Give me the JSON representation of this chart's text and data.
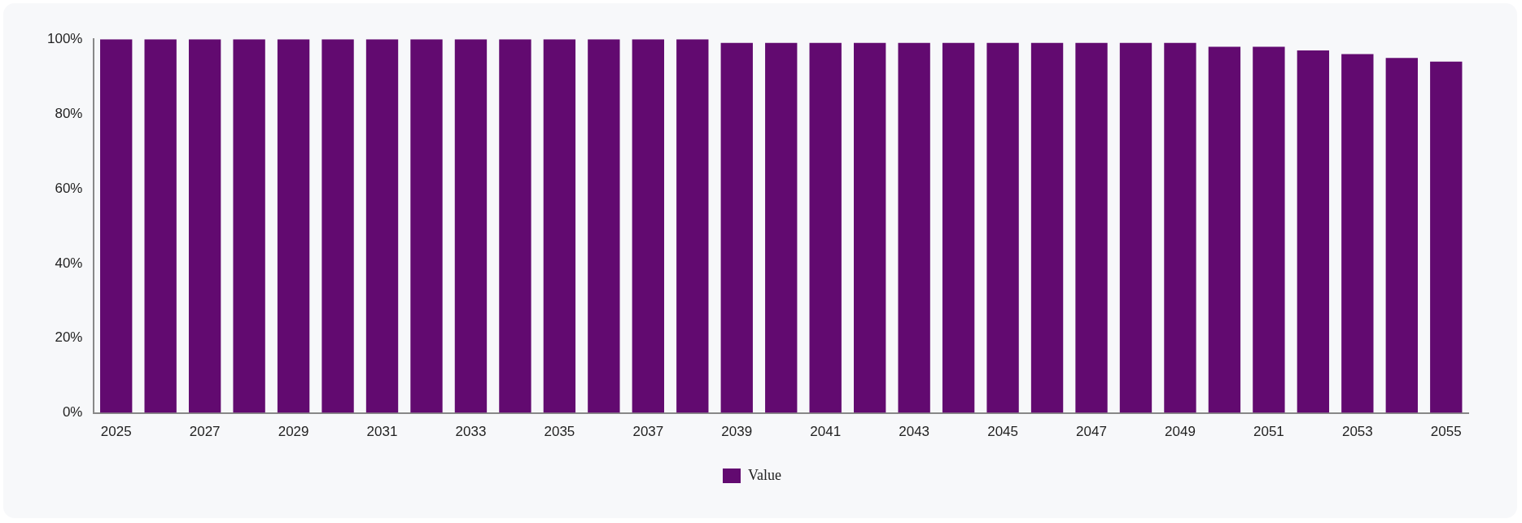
{
  "chart_data": {
    "type": "bar",
    "categories": [
      "2025",
      null,
      "2027",
      null,
      "2029",
      null,
      "2031",
      null,
      "2033",
      null,
      "2035",
      null,
      "2037",
      null,
      "2039",
      null,
      "2041",
      null,
      "2043",
      null,
      "2045",
      null,
      "2047",
      null,
      "2049",
      null,
      "2051",
      null,
      "2053",
      null,
      "2055"
    ],
    "series": [
      {
        "name": "Value",
        "color": "#620a70",
        "values": [
          100,
          100,
          100,
          100,
          100,
          100,
          100,
          100,
          100,
          100,
          100,
          100,
          100,
          100,
          99,
          99,
          99,
          99,
          99,
          99,
          99,
          99,
          99,
          99,
          99,
          98,
          98,
          97,
          96,
          95,
          94
        ]
      }
    ],
    "ylim": [
      0,
      100
    ],
    "yticks": [
      {
        "value": 0,
        "label": "0%"
      },
      {
        "value": 20,
        "label": "20%"
      },
      {
        "value": 40,
        "label": "40%"
      },
      {
        "value": 60,
        "label": "60%"
      },
      {
        "value": 80,
        "label": "80%"
      },
      {
        "value": 100,
        "label": "100%"
      }
    ],
    "grid": false,
    "legend": "bottom"
  }
}
